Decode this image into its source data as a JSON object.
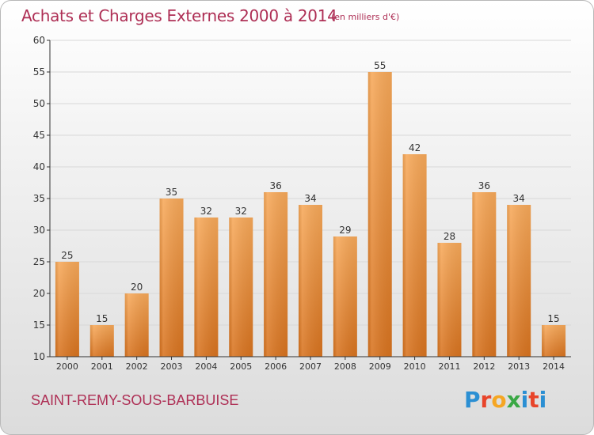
{
  "title": "Achats et Charges Externes 2000 à 2014",
  "subtitle": "(en milliers d'€)",
  "commune": "SAINT-REMY-SOUS-BARBUISE",
  "logo": {
    "letters": [
      "P",
      "r",
      "o",
      "x",
      "i",
      "t",
      "i"
    ],
    "colors": [
      "#2b8fd3",
      "#e8442a",
      "#f5a623",
      "#3aa845",
      "#2b8fd3",
      "#e8442a",
      "#2b8fd3"
    ]
  },
  "colors": {
    "bar_top": "#f7a95a",
    "bar_bottom": "#d8731f",
    "title": "#ae2f55",
    "grid": "#d8d8d8",
    "axis": "#333333"
  },
  "chart_data": {
    "type": "bar",
    "categories": [
      "2000",
      "2001",
      "2002",
      "2003",
      "2004",
      "2005",
      "2006",
      "2007",
      "2008",
      "2009",
      "2010",
      "2011",
      "2012",
      "2013",
      "2014"
    ],
    "values": [
      25,
      15,
      20,
      35,
      32,
      32,
      36,
      34,
      29,
      55,
      42,
      28,
      36,
      34,
      15
    ],
    "ylim": [
      10,
      60
    ],
    "yticks": [
      10,
      15,
      20,
      25,
      30,
      35,
      40,
      45,
      50,
      55,
      60
    ],
    "grid": true,
    "data_labels": true
  }
}
